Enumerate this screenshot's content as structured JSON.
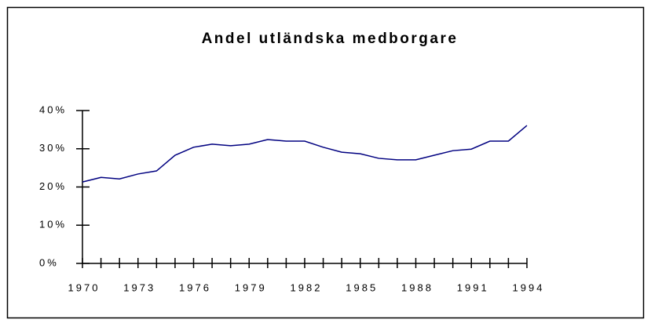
{
  "chart_data": {
    "type": "line",
    "title": "Andel utländska medborgare",
    "x": [
      1970,
      1971,
      1972,
      1973,
      1974,
      1975,
      1976,
      1977,
      1978,
      1979,
      1980,
      1981,
      1982,
      1983,
      1984,
      1985,
      1986,
      1987,
      1988,
      1989,
      1990,
      1991,
      1992,
      1993,
      1994
    ],
    "series": [
      {
        "color": "#000080",
        "values": [
          21.3,
          22.5,
          22.1,
          23.4,
          24.2,
          28.3,
          30.4,
          31.2,
          30.8,
          31.2,
          32.4,
          32.0,
          32.0,
          30.4,
          29.1,
          28.7,
          27.5,
          27.1,
          27.1,
          28.3,
          29.5,
          29.9,
          32.0,
          32.0,
          36.1
        ]
      }
    ],
    "xlim": [
      1970,
      1994
    ],
    "xticks": [
      1970,
      1973,
      1976,
      1979,
      1982,
      1985,
      1988,
      1991,
      1994
    ],
    "xminorticks": [
      1970,
      1971,
      1972,
      1973,
      1974,
      1975,
      1976,
      1977,
      1978,
      1979,
      1980,
      1981,
      1982,
      1983,
      1984,
      1985,
      1986,
      1987,
      1988,
      1989,
      1990,
      1991,
      1992,
      1993,
      1994
    ],
    "ylim": [
      0,
      40
    ],
    "yticks": [
      {
        "value": 0,
        "label": "0%"
      },
      {
        "value": 10,
        "label": "10%"
      },
      {
        "value": 20,
        "label": "20%"
      },
      {
        "value": 30,
        "label": "30%"
      },
      {
        "value": 40,
        "label": "40%"
      }
    ],
    "grid": false
  }
}
